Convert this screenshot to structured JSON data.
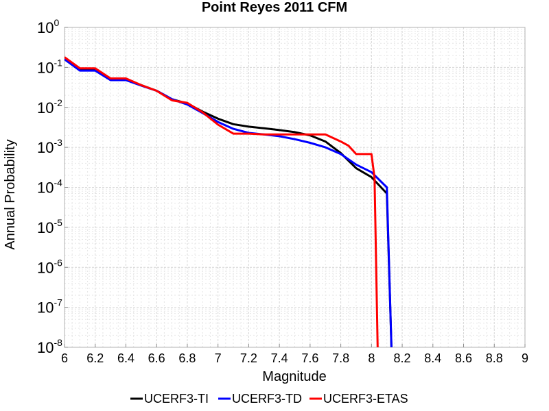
{
  "chart_data": {
    "type": "line",
    "title": "Point Reyes 2011 CFM",
    "xlabel": "Magnitude",
    "ylabel": "Annual Probability",
    "xscale": "linear",
    "yscale": "log",
    "xlim": [
      6,
      9
    ],
    "ylim": [
      1e-08,
      1
    ],
    "grid": true,
    "legend_position": "bottom",
    "xticks": [
      "6",
      "6.2",
      "6.4",
      "6.6",
      "6.8",
      "7",
      "7.2",
      "7.4",
      "7.6",
      "7.8",
      "8",
      "8.2",
      "8.4",
      "8.6",
      "8.8",
      "9"
    ],
    "yticks": [
      {
        "base": "10",
        "exp": "0"
      },
      {
        "base": "10",
        "exp": "-1"
      },
      {
        "base": "10",
        "exp": "-2"
      },
      {
        "base": "10",
        "exp": "-3"
      },
      {
        "base": "10",
        "exp": "-4"
      },
      {
        "base": "10",
        "exp": "-5"
      },
      {
        "base": "10",
        "exp": "-6"
      },
      {
        "base": "10",
        "exp": "-7"
      },
      {
        "base": "10",
        "exp": "-8"
      }
    ],
    "series": [
      {
        "name": "UCERF3-TI",
        "color": "#000000",
        "x": [
          6.0,
          6.1,
          6.2,
          6.3,
          6.4,
          6.5,
          6.6,
          6.7,
          6.8,
          6.9,
          7.0,
          7.1,
          7.2,
          7.3,
          7.4,
          7.5,
          7.6,
          7.7,
          7.8,
          7.9,
          8.0,
          8.1,
          8.13
        ],
        "y": [
          0.16,
          0.085,
          0.085,
          0.05,
          0.05,
          0.036,
          0.026,
          0.016,
          0.0125,
          0.0078,
          0.0052,
          0.0038,
          0.0033,
          0.003,
          0.0027,
          0.0024,
          0.002,
          0.0014,
          0.00072,
          0.0003,
          0.00018,
          7e-05,
          1e-08
        ]
      },
      {
        "name": "UCERF3-TD",
        "color": "#0000ff",
        "x": [
          6.0,
          6.1,
          6.2,
          6.3,
          6.4,
          6.5,
          6.6,
          6.7,
          6.8,
          6.9,
          7.0,
          7.1,
          7.2,
          7.3,
          7.4,
          7.5,
          7.6,
          7.7,
          7.8,
          7.9,
          8.0,
          8.1,
          8.13
        ],
        "y": [
          0.16,
          0.083,
          0.083,
          0.048,
          0.048,
          0.035,
          0.026,
          0.016,
          0.0118,
          0.0072,
          0.0043,
          0.0029,
          0.0023,
          0.0021,
          0.0019,
          0.0016,
          0.0013,
          0.001,
          0.00068,
          0.00037,
          0.00024,
          0.0001,
          1e-08
        ]
      },
      {
        "name": "UCERF3-ETAS",
        "color": "#ff0000",
        "x": [
          6.0,
          6.1,
          6.2,
          6.3,
          6.4,
          6.5,
          6.6,
          6.7,
          6.8,
          6.9,
          7.0,
          7.1,
          7.2,
          7.3,
          7.4,
          7.5,
          7.6,
          7.7,
          7.8,
          7.85,
          7.9,
          8.0,
          8.02,
          8.04
        ],
        "y": [
          0.18,
          0.095,
          0.095,
          0.053,
          0.053,
          0.036,
          0.026,
          0.015,
          0.013,
          0.0075,
          0.0037,
          0.0022,
          0.0022,
          0.0021,
          0.0021,
          0.0021,
          0.0021,
          0.0021,
          0.0014,
          0.0011,
          0.00068,
          0.00068,
          0.00017,
          1e-08
        ]
      }
    ]
  }
}
